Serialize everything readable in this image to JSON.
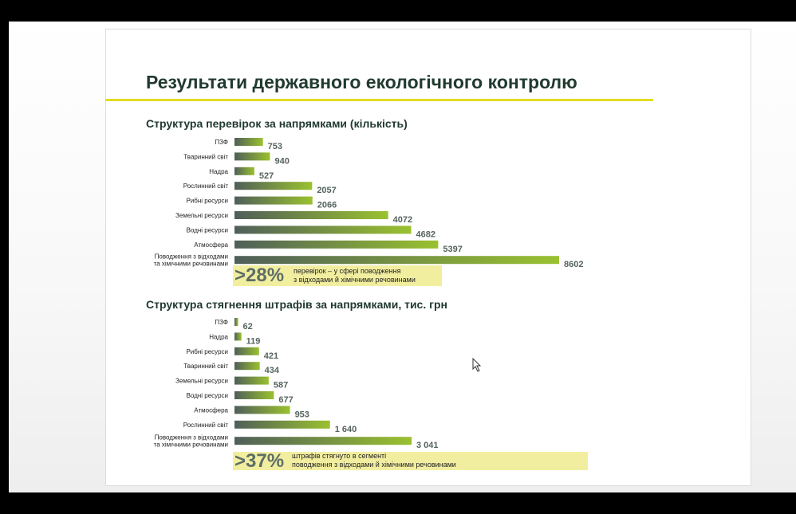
{
  "slide": {
    "title": "Результати державного екологічного контролю"
  },
  "charts": {
    "inspections_subtitle": "Структура перевірок за напрямками (кількість)",
    "fines_subtitle": "Структура стягнення штрафів за напрямками, тис. грн"
  },
  "callouts": {
    "inspections": {
      "percent": ">28%",
      "line1": "перевірок – у сфері поводження",
      "line2": "з відходами й хімічними речовинами"
    },
    "fines": {
      "percent": ">37%",
      "line1": "штрафів стягнуто в сегменті",
      "line2": "поводження з відходами й хімічними речовинами"
    }
  },
  "colors": {
    "bar_start": "#4f5f59",
    "bar_end": "#9ac12f",
    "accent_yellow": "#e3dc23",
    "callout_bg": "#f2eea0",
    "title_green": "#213a30"
  },
  "chart_data": [
    {
      "type": "bar",
      "orientation": "horizontal",
      "title": "Структура перевірок за напрямками (кількість)",
      "categories": [
        "ПЗФ",
        "Тваринний світ",
        "Надра",
        "Рослинний світ",
        "Рибні ресурси",
        "Земельні ресурси",
        "Водні ресурси",
        "Атмосфера",
        "Поводження з відходами та хімічними речовинами"
      ],
      "category_lines": [
        [
          "ПЗФ"
        ],
        [
          "Тваринний світ"
        ],
        [
          "Надра"
        ],
        [
          "Рослинний світ"
        ],
        [
          "Рибні ресурси"
        ],
        [
          "Земельні ресурси"
        ],
        [
          "Водні ресурси"
        ],
        [
          "Атмосфера"
        ],
        [
          "Поводження з відходами",
          "та хімічними речовинами"
        ]
      ],
      "values": [
        753,
        940,
        527,
        2057,
        2066,
        4072,
        4682,
        5397,
        8602
      ],
      "value_labels": [
        "753",
        "940",
        "527",
        "2057",
        "2066",
        "4072",
        "4682",
        "5397",
        "8602"
      ],
      "grid": false,
      "legend": "none"
    },
    {
      "type": "bar",
      "orientation": "horizontal",
      "title": "Структура стягнення штрафів за напрямками, тис. грн",
      "categories": [
        "ПЗФ",
        "Надра",
        "Рибні ресурси",
        "Тваринний світ",
        "Земельні ресурси",
        "Водні ресурси",
        "Атмосфера",
        "Рослинний світ",
        "Поводження з відходами та хімічними речовинами"
      ],
      "category_lines": [
        [
          "ПЗФ"
        ],
        [
          "Надра"
        ],
        [
          "Рибні ресурси"
        ],
        [
          "Тваринний світ"
        ],
        [
          "Земельні ресурси"
        ],
        [
          "Водні ресурси"
        ],
        [
          "Атмосфера"
        ],
        [
          "Рослинний світ"
        ],
        [
          "Поводження з відходами",
          "та хімічними речовинами"
        ]
      ],
      "values": [
        62,
        119,
        421,
        434,
        587,
        677,
        953,
        1640,
        3041
      ],
      "value_labels": [
        "62",
        "119",
        "421",
        "434",
        "587",
        "677",
        "953",
        "1 640",
        "3 041"
      ],
      "grid": false,
      "legend": "none"
    }
  ]
}
